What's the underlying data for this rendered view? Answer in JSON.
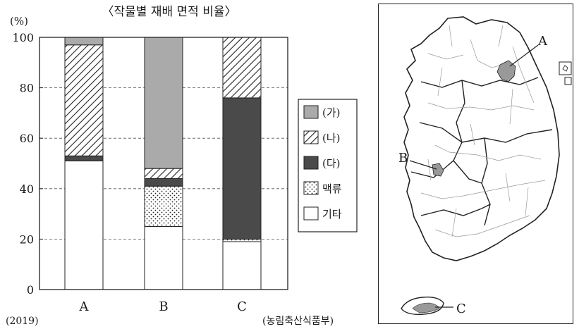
{
  "chart_data": {
    "type": "bar",
    "stacked": true,
    "title": "〈작물별 재배 면적 비율〉",
    "ylabel": "(%)",
    "ylim": [
      0,
      100
    ],
    "yticks": [
      0,
      20,
      40,
      60,
      80,
      100
    ],
    "grid": "dashed horizontal",
    "categories": [
      "A",
      "B",
      "C"
    ],
    "series": [
      {
        "name": "기타",
        "values": [
          51,
          25,
          19
        ],
        "pattern": "white"
      },
      {
        "name": "맥류",
        "values": [
          0,
          16,
          1
        ],
        "pattern": "dots"
      },
      {
        "name": "(다)",
        "values": [
          2,
          3,
          56
        ],
        "pattern": "dark"
      },
      {
        "name": "(나)",
        "values": [
          44,
          4,
          24
        ],
        "pattern": "hatch"
      },
      {
        "name": "(가)",
        "values": [
          3,
          52,
          0
        ],
        "pattern": "gray"
      }
    ],
    "legend_order": [
      "(가)",
      "(나)",
      "(다)",
      "맥류",
      "기타"
    ],
    "legend_placement": "right",
    "year_note": "(2019)",
    "source": "(농림축산식품부)",
    "colors": {
      "gray": "#aaaaaa",
      "dark": "#4a4a4a",
      "line": "#222222"
    }
  },
  "map": {
    "labels": [
      "A",
      "B",
      "C"
    ],
    "highlight_color": "#999999"
  }
}
